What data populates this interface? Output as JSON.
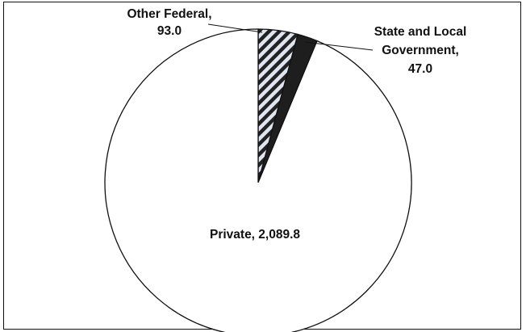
{
  "chart_data": {
    "type": "pie",
    "slices": [
      {
        "label": "Other Federal",
        "value": 93.0,
        "value_text": "93.0",
        "pattern": "diagonal-hatch",
        "color": "#222222"
      },
      {
        "label": "State and Local Government",
        "value": 47.0,
        "value_text": "47.0",
        "pattern": "solid",
        "color": "#1e1e1e"
      },
      {
        "label": "Private",
        "value": 2089.8,
        "value_text": "2,089.8",
        "pattern": "solid",
        "color": "#ffffff"
      }
    ],
    "legend": "none",
    "start": "12 o'clock, clockwise",
    "colors": {
      "outline": "#111111",
      "hatch_bg": "#dfe6f2",
      "background": "#ffffff"
    }
  },
  "labels": {
    "other_federal_line1": "Other Federal,",
    "other_federal_line2": "93.0",
    "state_local_line1": "State and Local",
    "state_local_line2": "Government,",
    "state_local_line3": "47.0",
    "private": "Private, 2,089.8"
  }
}
